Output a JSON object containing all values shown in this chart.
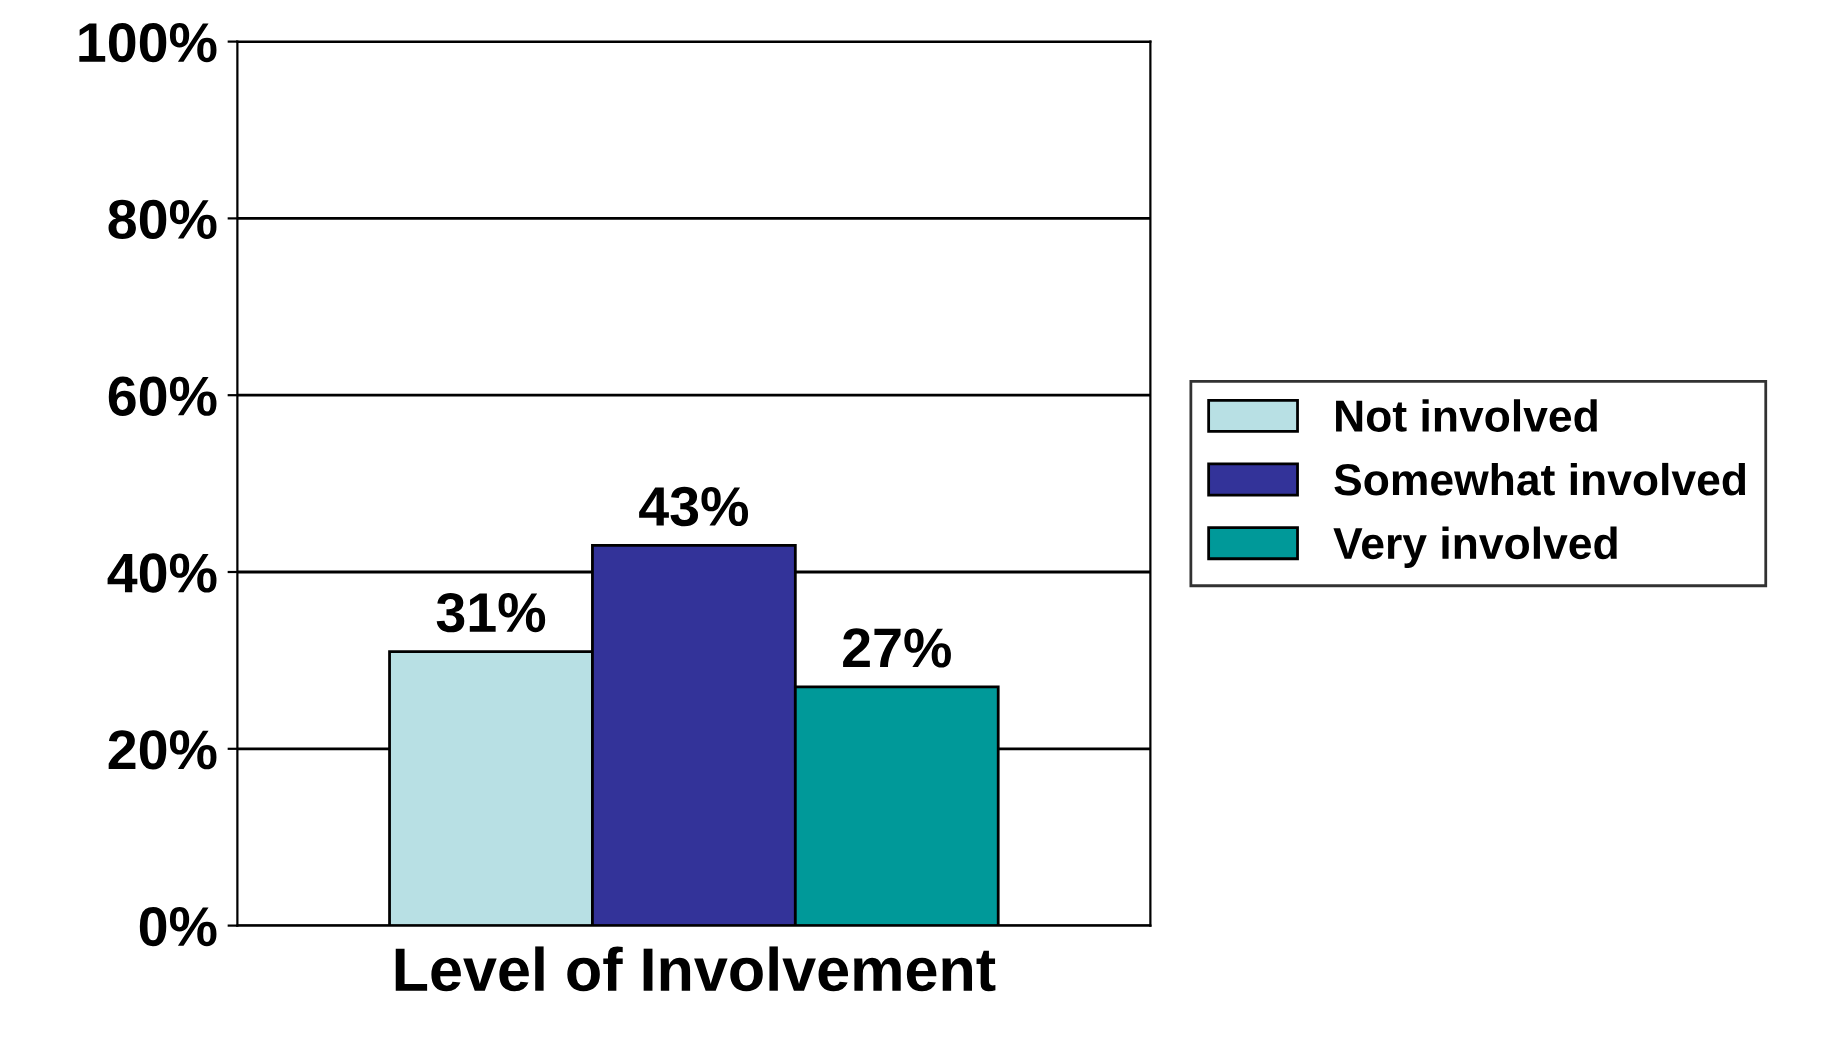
{
  "chart_data": {
    "type": "bar",
    "xlabel": "Level of Involvement",
    "categories": [
      null
    ],
    "series": [
      {
        "name": "Not involved",
        "color": "#b8e0e4",
        "values": [
          31
        ],
        "value_labels": [
          "31%"
        ]
      },
      {
        "name": "Somewhat involved",
        "color": "#333399",
        "values": [
          43
        ],
        "value_labels": [
          "43%"
        ]
      },
      {
        "name": "Very involved",
        "color": "#009999",
        "values": [
          27
        ],
        "value_labels": [
          "27%"
        ]
      }
    ],
    "ylim": [
      0,
      100
    ],
    "yticks": [
      {
        "value": 0,
        "label": "0%"
      },
      {
        "value": 20,
        "label": "20%"
      },
      {
        "value": 40,
        "label": "40%"
      },
      {
        "value": 60,
        "label": "60%"
      },
      {
        "value": 80,
        "label": "80%"
      },
      {
        "value": 100,
        "label": "100%"
      }
    ],
    "grid": "y",
    "legend": "right"
  }
}
